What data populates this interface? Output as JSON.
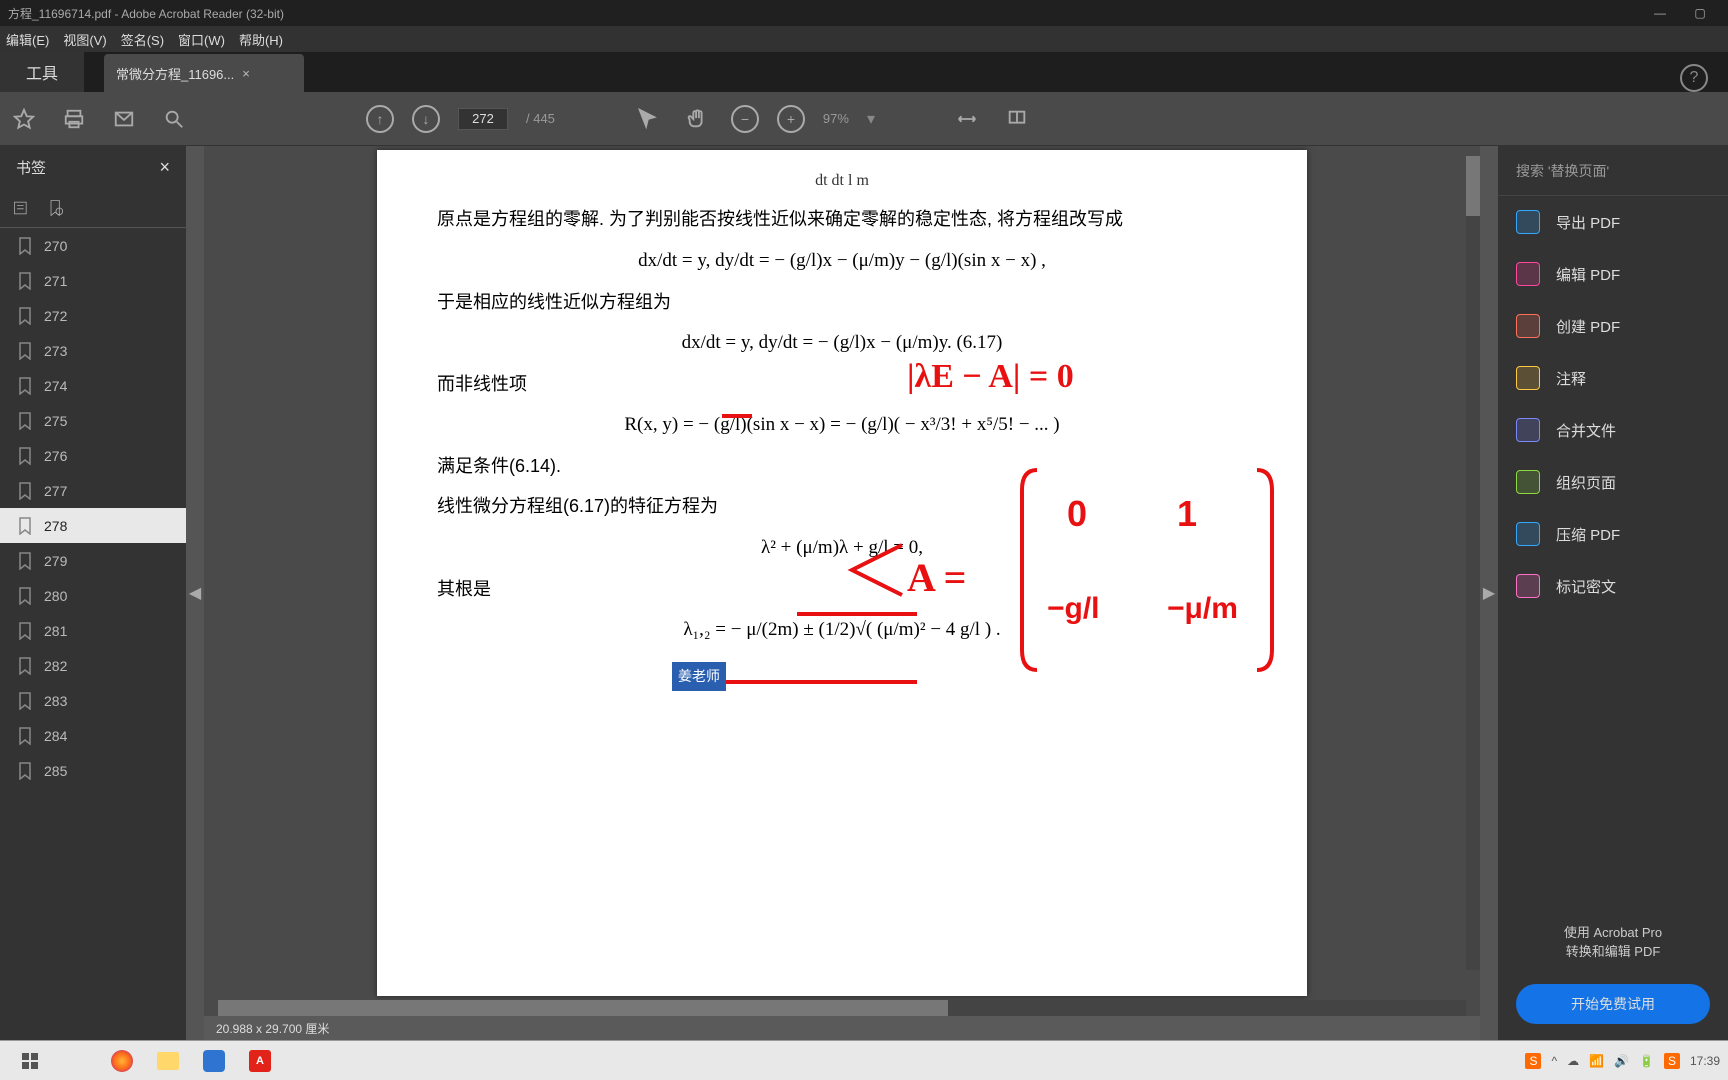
{
  "title": "方程_11696714.pdf - Adobe Acrobat Reader (32-bit)",
  "menu": {
    "edit": "编辑(E)",
    "view": "视图(V)",
    "sign": "签名(S)",
    "window": "窗口(W)",
    "help": "帮助(H)"
  },
  "tabs": {
    "tools": "工具",
    "file": "常微分方程_11696..."
  },
  "toolbar": {
    "page_current": "272",
    "page_total": "/ 445",
    "zoom": "97%"
  },
  "left": {
    "header": "书签",
    "bookmarks": [
      "270",
      "271",
      "272",
      "273",
      "274",
      "275",
      "276",
      "277",
      "278",
      "279",
      "280",
      "281",
      "282",
      "283",
      "284",
      "285"
    ],
    "active": "278"
  },
  "doc": {
    "eq_top": "dt          dt      l              m",
    "para1": "原点是方程组的零解. 为了判别能否按线性近似来确定零解的稳定性态, 将方程组改写成",
    "eq1": "dx/dt = y,   dy/dt = − (g/l)x − (μ/m)y − (g/l)(sin x − x) ,",
    "para2": "于是相应的线性近似方程组为",
    "eq2": "dx/dt = y,   dy/dt = − (g/l)x − (μ/m)y.          (6.17)",
    "para3": "而非线性项",
    "eq3": "R(x, y) = − (g/l)(sin x − x) = − (g/l)( − x³/3! + x⁵/5! − ... )",
    "para4": "满足条件(6.14).",
    "para5": "    线性微分方程组(6.17)的特征方程为",
    "eq4": "λ² + (μ/m)λ + g/l = 0,",
    "para6": "其根是",
    "eq5": "λ₁,₂ = − μ/(2m) ± (1/2)√( (μ/m)² − 4 g/l ) .",
    "blue_tag": "姜老师",
    "footer_size": "20.988 x 29.700 厘米"
  },
  "annotations": {
    "det": "|λE − A| = 0",
    "matA": "A =",
    "m11": "0",
    "m12": "1",
    "m21": "−g/l",
    "m22": "−μ/m"
  },
  "right": {
    "search": "搜索 '替换页面'",
    "items": [
      {
        "label": "导出 PDF",
        "color": "#31a8ff"
      },
      {
        "label": "编辑 PDF",
        "color": "#ff46a1"
      },
      {
        "label": "创建 PDF",
        "color": "#ff715b"
      },
      {
        "label": "注释",
        "color": "#ffc845"
      },
      {
        "label": "合并文件",
        "color": "#7b87ff"
      },
      {
        "label": "组织页面",
        "color": "#8ed93f"
      },
      {
        "label": "压缩 PDF",
        "color": "#31a8ff"
      },
      {
        "label": "标记密文",
        "color": "#ff6ec7"
      }
    ],
    "promo1": "使用 Acrobat Pro",
    "promo2": "转换和编辑 PDF",
    "trial": "开始免费试用"
  },
  "taskbar": {
    "clock": "17:39"
  }
}
